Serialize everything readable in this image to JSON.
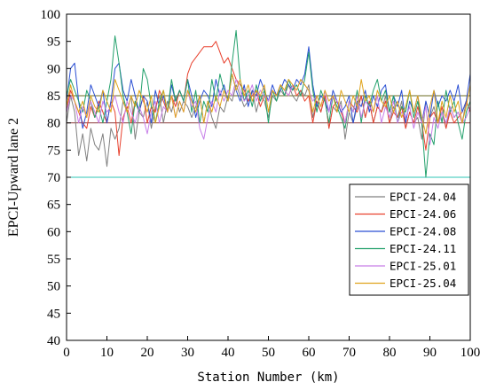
{
  "chart_data": {
    "type": "line",
    "xlabel": "Station Number (km)",
    "ylabel": "EPCI-Upward lane 2",
    "xlim": [
      0,
      100
    ],
    "ylim": [
      40,
      100
    ],
    "x_ticks": [
      0,
      10,
      20,
      30,
      40,
      50,
      60,
      70,
      80,
      90,
      100
    ],
    "y_ticks": [
      40,
      45,
      50,
      55,
      60,
      65,
      70,
      75,
      80,
      85,
      90,
      95,
      100
    ],
    "grid": false,
    "legend_position": "right",
    "reference_lines": [
      {
        "y": 85,
        "color": "#6b6b22"
      },
      {
        "y": 80,
        "color": "#8b3a3a"
      },
      {
        "y": 70,
        "color": "#2ec4b6"
      }
    ],
    "series": [
      {
        "name": "EPCI-24.04",
        "color": "#808080",
        "values": [
          80,
          85,
          82,
          74,
          78,
          73,
          79,
          76,
          75,
          78,
          72,
          79,
          77,
          79,
          84,
          82,
          85,
          77,
          82,
          81,
          84,
          79,
          83,
          85,
          80,
          84,
          82,
          85,
          82,
          84,
          83,
          81,
          83,
          85,
          80,
          84,
          81,
          79,
          83,
          82,
          85,
          84,
          87,
          85,
          83,
          84,
          86,
          82,
          85,
          84,
          81,
          85,
          84,
          86,
          85,
          87,
          85,
          84,
          86,
          85,
          87,
          81,
          84,
          82,
          85,
          79,
          83,
          82,
          84,
          77,
          82,
          80,
          83,
          85,
          81,
          84,
          80,
          83,
          82,
          85,
          80,
          83,
          81,
          84,
          79,
          82,
          80,
          81,
          77,
          84,
          81,
          83,
          80,
          82,
          79,
          83,
          81,
          82,
          80,
          84,
          82
        ]
      },
      {
        "name": "EPCI-24.06",
        "color": "#e8412e",
        "values": [
          82,
          86,
          84,
          82,
          80,
          79,
          83,
          81,
          84,
          82,
          80,
          84,
          82,
          74,
          81,
          83,
          80,
          84,
          82,
          85,
          80,
          83,
          82,
          86,
          84,
          82,
          85,
          83,
          86,
          84,
          89,
          91,
          92,
          93,
          94,
          94,
          94,
          95,
          93,
          91,
          92,
          90,
          88,
          87,
          86,
          84,
          85,
          86,
          83,
          85,
          84,
          86,
          85,
          87,
          86,
          85,
          87,
          85,
          86,
          84,
          85,
          80,
          84,
          82,
          85,
          79,
          83,
          84,
          82,
          80,
          84,
          83,
          82,
          85,
          81,
          84,
          80,
          83,
          82,
          84,
          80,
          82,
          81,
          83,
          79,
          82,
          80,
          83,
          80,
          75,
          81,
          82,
          80,
          83,
          79,
          82,
          80,
          81,
          82,
          84,
          82
        ]
      },
      {
        "name": "EPCI-24.08",
        "color": "#2a4fd4",
        "values": [
          84,
          90,
          91,
          84,
          79,
          82,
          87,
          85,
          83,
          86,
          80,
          84,
          90,
          91,
          86,
          84,
          88,
          85,
          82,
          85,
          84,
          80,
          86,
          83,
          85,
          82,
          87,
          84,
          86,
          84,
          88,
          85,
          81,
          84,
          86,
          85,
          83,
          88,
          85,
          87,
          84,
          89,
          86,
          84,
          87,
          83,
          86,
          85,
          88,
          86,
          84,
          87,
          85,
          86,
          88,
          87,
          86,
          88,
          87,
          89,
          94,
          87,
          83,
          85,
          84,
          82,
          86,
          84,
          82,
          83,
          85,
          80,
          84,
          83,
          86,
          82,
          85,
          83,
          86,
          87,
          82,
          85,
          83,
          86,
          80,
          84,
          82,
          85,
          80,
          84,
          81,
          86,
          83,
          85,
          84,
          86,
          84,
          87,
          82,
          84,
          89
        ]
      },
      {
        "name": "EPCI-24.11",
        "color": "#22a06b",
        "values": [
          85,
          88,
          86,
          84,
          82,
          86,
          84,
          81,
          83,
          80,
          84,
          88,
          96,
          91,
          85,
          82,
          78,
          84,
          82,
          90,
          88,
          83,
          80,
          84,
          86,
          82,
          88,
          84,
          86,
          84,
          88,
          82,
          86,
          80,
          84,
          82,
          88,
          84,
          89,
          86,
          84,
          91,
          97,
          88,
          84,
          86,
          83,
          87,
          84,
          86,
          80,
          86,
          84,
          87,
          85,
          88,
          86,
          87,
          85,
          88,
          93,
          86,
          82,
          86,
          84,
          80,
          85,
          83,
          81,
          79,
          84,
          82,
          86,
          80,
          85,
          83,
          86,
          88,
          84,
          86,
          82,
          85,
          80,
          83,
          82,
          86,
          81,
          84,
          80,
          70,
          78,
          76,
          84,
          80,
          86,
          82,
          84,
          80,
          77,
          82,
          84
        ]
      },
      {
        "name": "EPCI-25.01",
        "color": "#c77ee8",
        "values": [
          82,
          85,
          84,
          80,
          83,
          81,
          84,
          82,
          80,
          84,
          82,
          83,
          85,
          82,
          80,
          84,
          82,
          80,
          83,
          81,
          78,
          82,
          84,
          80,
          83,
          82,
          85,
          81,
          84,
          82,
          86,
          83,
          84,
          79,
          77,
          81,
          84,
          82,
          86,
          84,
          86,
          85,
          88,
          86,
          84,
          85,
          87,
          84,
          86,
          85,
          84,
          86,
          85,
          87,
          86,
          85,
          87,
          86,
          88,
          87,
          86,
          84,
          85,
          83,
          86,
          82,
          85,
          84,
          83,
          80,
          84,
          82,
          85,
          81,
          84,
          83,
          82,
          85,
          80,
          83,
          81,
          84,
          80,
          82,
          81,
          83,
          79,
          82,
          80,
          83,
          76,
          81,
          79,
          82,
          80,
          83,
          81,
          82,
          80,
          81,
          83
        ]
      },
      {
        "name": "EPCI-25.04",
        "color": "#e0a31c",
        "values": [
          83,
          87,
          84,
          82,
          84,
          81,
          85,
          83,
          82,
          86,
          84,
          82,
          88,
          86,
          84,
          82,
          85,
          83,
          86,
          84,
          82,
          85,
          80,
          83,
          86,
          82,
          85,
          81,
          84,
          82,
          86,
          84,
          82,
          85,
          80,
          84,
          82,
          85,
          83,
          86,
          84,
          89,
          86,
          88,
          85,
          87,
          84,
          86,
          85,
          87,
          82,
          86,
          85,
          87,
          86,
          88,
          87,
          86,
          88,
          87,
          86,
          82,
          85,
          83,
          86,
          84,
          85,
          82,
          86,
          84,
          82,
          85,
          83,
          88,
          84,
          85,
          82,
          86,
          84,
          83,
          85,
          82,
          84,
          81,
          83,
          86,
          82,
          85,
          81,
          78,
          83,
          86,
          80,
          84,
          81,
          85,
          82,
          84,
          80,
          83,
          87
        ]
      }
    ]
  }
}
